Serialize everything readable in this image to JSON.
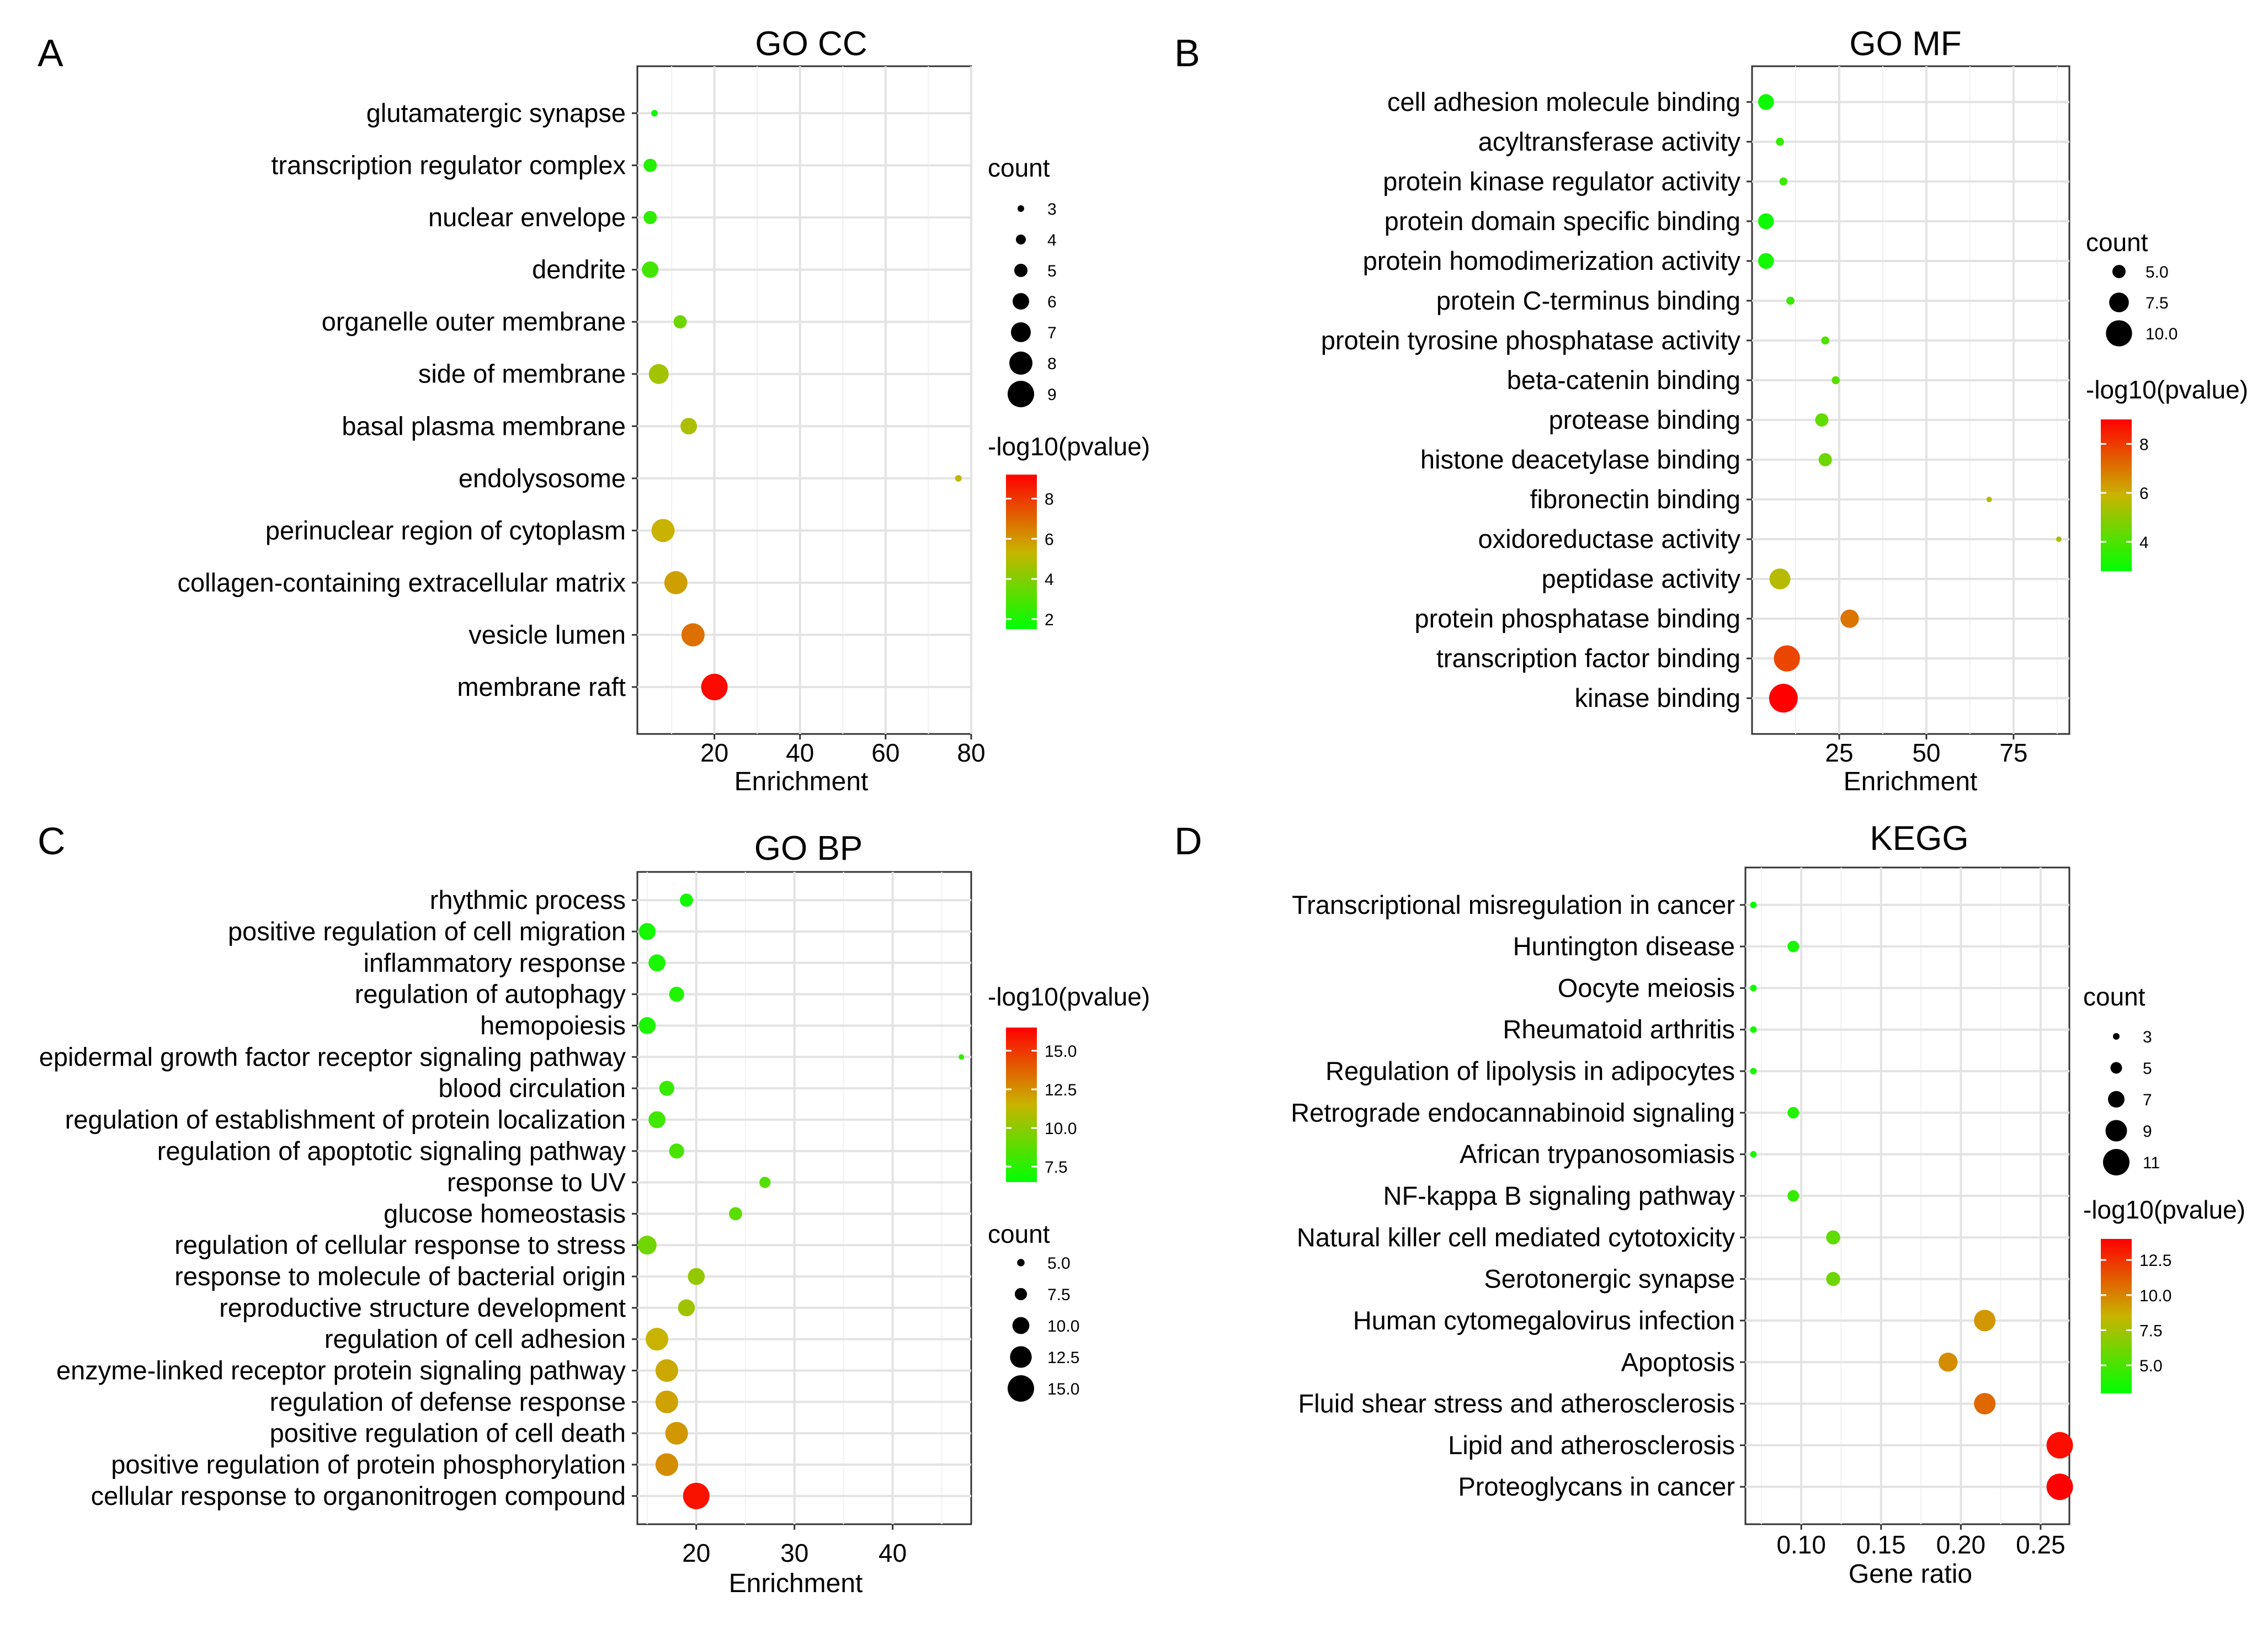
{
  "colors": {
    "low": "#00ff00",
    "mid": "#c8b400",
    "high": "#ff0000"
  },
  "chart_data": [
    {
      "panel": "A",
      "type": "scatter",
      "title": "GO CC",
      "xlabel": "Enrichment",
      "ylabel": "",
      "xlim": [
        2,
        80
      ],
      "xticks": [
        20,
        40,
        60,
        80
      ],
      "size_legend": {
        "title": "count",
        "values": [
          3,
          4,
          5,
          6,
          7,
          8,
          9
        ]
      },
      "color_legend": {
        "title": "-log10(pvalue)",
        "range": [
          1.5,
          9.2
        ],
        "ticks": [
          8,
          6,
          4,
          2
        ]
      },
      "points": [
        {
          "label": "glutamatergic synapse",
          "x": 6,
          "count": 3,
          "log10p": 1.8
        },
        {
          "label": "transcription regulator complex",
          "x": 5,
          "count": 5,
          "log10p": 2.2
        },
        {
          "label": "nuclear envelope",
          "x": 5,
          "count": 5,
          "log10p": 2.4
        },
        {
          "label": "dendrite",
          "x": 5,
          "count": 6,
          "log10p": 2.8
        },
        {
          "label": "organelle outer membrane",
          "x": 12,
          "count": 5,
          "log10p": 3.6
        },
        {
          "label": "side of membrane",
          "x": 7,
          "count": 7,
          "log10p": 4.6
        },
        {
          "label": "basal plasma membrane",
          "x": 14,
          "count": 6,
          "log10p": 4.8
        },
        {
          "label": "endolysosome",
          "x": 77,
          "count": 3,
          "log10p": 5.2
        },
        {
          "label": "perinuclear region of cytoplasm",
          "x": 8,
          "count": 8,
          "log10p": 5.4
        },
        {
          "label": "collagen-containing extracellular matrix",
          "x": 11,
          "count": 8,
          "log10p": 5.8
        },
        {
          "label": "vesicle lumen",
          "x": 15,
          "count": 8,
          "log10p": 6.8
        },
        {
          "label": "membrane raft",
          "x": 20,
          "count": 9,
          "log10p": 9.0
        }
      ]
    },
    {
      "panel": "B",
      "type": "scatter",
      "title": "GO MF",
      "xlabel": "Enrichment",
      "ylabel": "",
      "xlim": [
        0,
        91
      ],
      "xticks": [
        25,
        50,
        75
      ],
      "size_legend": {
        "title": "count",
        "values": [
          5.0,
          7.5,
          10.0
        ]
      },
      "color_legend": {
        "title": "-log10(pvalue)",
        "range": [
          2.8,
          9.0
        ],
        "ticks": [
          8,
          6,
          4
        ]
      },
      "points": [
        {
          "label": "cell adhesion molecule binding",
          "x": 4,
          "count": 6,
          "log10p": 3.0
        },
        {
          "label": "acyltransferase activity",
          "x": 8,
          "count": 3,
          "log10p": 3.6
        },
        {
          "label": "protein kinase regulator activity",
          "x": 9,
          "count": 3,
          "log10p": 3.8
        },
        {
          "label": "protein domain specific binding",
          "x": 4,
          "count": 6,
          "log10p": 3.0
        },
        {
          "label": "protein homodimerization activity",
          "x": 4,
          "count": 6,
          "log10p": 3.1
        },
        {
          "label": "protein C-terminus binding",
          "x": 11,
          "count": 3,
          "log10p": 3.7
        },
        {
          "label": "protein tyrosine phosphatase activity",
          "x": 21,
          "count": 3,
          "log10p": 4.0
        },
        {
          "label": "beta-catenin binding",
          "x": 24,
          "count": 3,
          "log10p": 4.2
        },
        {
          "label": "protease binding",
          "x": 20,
          "count": 5,
          "log10p": 4.3
        },
        {
          "label": "histone deacetylase binding",
          "x": 21,
          "count": 5,
          "log10p": 4.5
        },
        {
          "label": "fibronectin binding",
          "x": 68,
          "count": 2,
          "log10p": 5.6
        },
        {
          "label": "oxidoreductase activity",
          "x": 88,
          "count": 2,
          "log10p": 5.5
        },
        {
          "label": "peptidase activity",
          "x": 8,
          "count": 8,
          "log10p": 5.6
        },
        {
          "label": "protein phosphatase binding",
          "x": 28,
          "count": 7,
          "log10p": 7.0
        },
        {
          "label": "transcription factor binding",
          "x": 10,
          "count": 10,
          "log10p": 7.8
        },
        {
          "label": "kinase binding",
          "x": 9,
          "count": 11,
          "log10p": 9.0
        }
      ]
    },
    {
      "panel": "C",
      "type": "scatter",
      "title": "GO BP",
      "xlabel": "Enrichment",
      "ylabel": "",
      "xlim": [
        14,
        48
      ],
      "xticks": [
        20,
        30,
        40
      ],
      "size_legend": {
        "title": "count",
        "values": [
          5.0,
          7.5,
          10.0,
          12.5,
          15.0
        ]
      },
      "color_legend": {
        "title": "-log10(pvalue)",
        "range": [
          6.5,
          16.5
        ],
        "ticks": [
          15.0,
          12.5,
          10.0,
          7.5
        ]
      },
      "points": [
        {
          "label": "rhythmic process",
          "x": 19,
          "count": 8,
          "log10p": 6.9
        },
        {
          "label": "positive regulation of cell migration",
          "x": 15,
          "count": 10,
          "log10p": 7.0
        },
        {
          "label": "inflammatory response",
          "x": 16,
          "count": 10,
          "log10p": 7.1
        },
        {
          "label": "regulation of autophagy",
          "x": 18,
          "count": 9,
          "log10p": 7.3
        },
        {
          "label": "hemopoiesis",
          "x": 15,
          "count": 10,
          "log10p": 7.2
        },
        {
          "label": "epidermal growth factor receptor signaling pathway",
          "x": 47,
          "count": 4,
          "log10p": 7.8
        },
        {
          "label": "blood circulation",
          "x": 17,
          "count": 9,
          "log10p": 7.9
        },
        {
          "label": "regulation of establishment of protein localization",
          "x": 16,
          "count": 10,
          "log10p": 8.1
        },
        {
          "label": "regulation of apoptotic signaling pathway",
          "x": 18,
          "count": 9,
          "log10p": 8.3
        },
        {
          "label": "response to UV",
          "x": 27,
          "count": 7,
          "log10p": 8.6
        },
        {
          "label": "glucose homeostasis",
          "x": 24,
          "count": 8,
          "log10p": 8.8
        },
        {
          "label": "regulation of cellular response to stress",
          "x": 15,
          "count": 11,
          "log10p": 9.3
        },
        {
          "label": "response to molecule of bacterial origin",
          "x": 20,
          "count": 10,
          "log10p": 10.2
        },
        {
          "label": "reproductive structure development",
          "x": 19,
          "count": 10,
          "log10p": 10.5
        },
        {
          "label": "regulation of cell adhesion",
          "x": 16,
          "count": 13,
          "log10p": 11.5
        },
        {
          "label": "enzyme-linked receptor protein signaling pathway",
          "x": 17,
          "count": 13,
          "log10p": 11.8
        },
        {
          "label": "regulation of defense response",
          "x": 17,
          "count": 13,
          "log10p": 12.0
        },
        {
          "label": "positive regulation of cell death",
          "x": 18,
          "count": 13,
          "log10p": 12.3
        },
        {
          "label": "positive regulation of protein phosphorylation",
          "x": 17,
          "count": 13,
          "log10p": 12.6
        },
        {
          "label": "cellular response to organonitrogen compound",
          "x": 20,
          "count": 15,
          "log10p": 16.0
        }
      ]
    },
    {
      "panel": "D",
      "type": "scatter",
      "title": "KEGG",
      "xlabel": "Gene ratio",
      "ylabel": "",
      "xlim": [
        0.065,
        0.268
      ],
      "xticks": [
        0.1,
        0.15,
        0.2,
        0.25
      ],
      "xtick_labels": [
        "0.10",
        "0.15",
        "0.20",
        "0.25"
      ],
      "size_legend": {
        "title": "count",
        "values": [
          3,
          5,
          7,
          9,
          11
        ]
      },
      "color_legend": {
        "title": "-log10(pvalue)",
        "range": [
          3.0,
          14.0
        ],
        "ticks": [
          12.5,
          10.0,
          7.5,
          5.0
        ]
      },
      "points": [
        {
          "label": "Transcriptional misregulation in cancer",
          "x": 0.07,
          "count": 3,
          "log10p": 3.2
        },
        {
          "label": "Huntington disease",
          "x": 0.095,
          "count": 5,
          "log10p": 3.6
        },
        {
          "label": "Oocyte meiosis",
          "x": 0.07,
          "count": 3,
          "log10p": 3.4
        },
        {
          "label": "Rheumatoid arthritis",
          "x": 0.07,
          "count": 3,
          "log10p": 3.5
        },
        {
          "label": "Regulation of lipolysis in adipocytes",
          "x": 0.07,
          "count": 3,
          "log10p": 3.6
        },
        {
          "label": "Retrograde endocannabinoid signaling",
          "x": 0.095,
          "count": 5,
          "log10p": 4.0
        },
        {
          "label": "African trypanosomiasis",
          "x": 0.07,
          "count": 3,
          "log10p": 3.8
        },
        {
          "label": "NF-kappa B signaling pathway",
          "x": 0.095,
          "count": 5,
          "log10p": 4.4
        },
        {
          "label": "Natural killer cell mediated cytotoxicity",
          "x": 0.12,
          "count": 6,
          "log10p": 5.6
        },
        {
          "label": "Serotonergic synapse",
          "x": 0.12,
          "count": 6,
          "log10p": 6.0
        },
        {
          "label": "Human cytomegalovirus infection",
          "x": 0.215,
          "count": 9,
          "log10p": 9.4
        },
        {
          "label": "Apoptosis",
          "x": 0.192,
          "count": 8,
          "log10p": 9.7
        },
        {
          "label": "Fluid shear stress and atherosclerosis",
          "x": 0.215,
          "count": 9,
          "log10p": 10.8
        },
        {
          "label": "Lipid and atherosclerosis",
          "x": 0.262,
          "count": 11,
          "log10p": 13.6
        },
        {
          "label": "Proteoglycans in cancer",
          "x": 0.262,
          "count": 11,
          "log10p": 14.0
        }
      ]
    }
  ]
}
